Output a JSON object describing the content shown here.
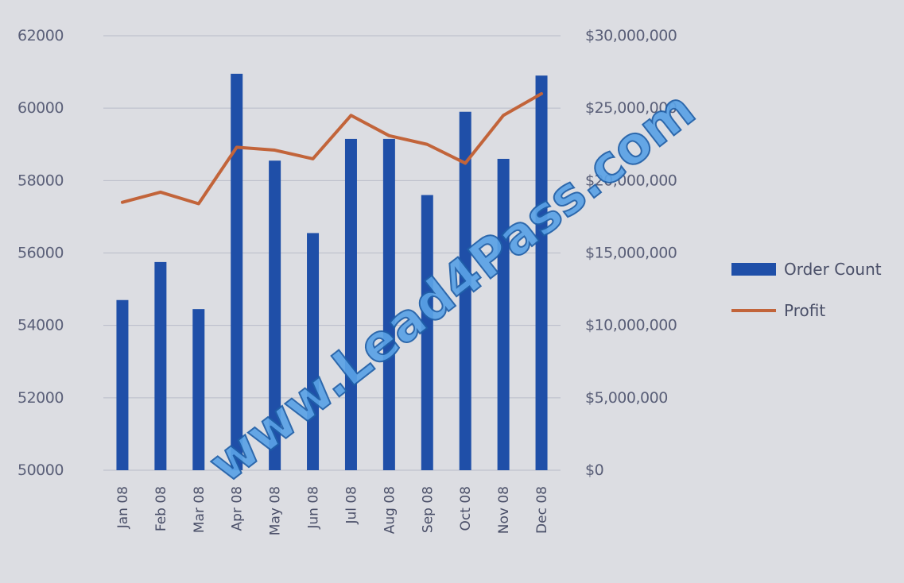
{
  "chart_data": {
    "type": "bar",
    "categories": [
      "Jan 08",
      "Feb 08",
      "Mar 08",
      "Apr 08",
      "May 08",
      "Jun 08",
      "Jul 08",
      "Aug 08",
      "Sep 08",
      "Oct 08",
      "Nov 08",
      "Dec 08"
    ],
    "series": [
      {
        "name": "Order Count",
        "type": "bar",
        "axis": "left",
        "values": [
          54700,
          55750,
          54450,
          60950,
          58550,
          56550,
          59150,
          59150,
          57600,
          59900,
          58600,
          60900
        ],
        "color": "#1f4fa8"
      },
      {
        "name": "Profit",
        "type": "line",
        "axis": "right",
        "values": [
          18500000,
          19200000,
          18400000,
          22300000,
          22100000,
          21500000,
          24500000,
          23100000,
          22500000,
          21200000,
          24500000,
          26000000
        ],
        "color": "#c2643a"
      }
    ],
    "y_left": {
      "ticks": [
        "62000",
        "60000",
        "58000",
        "56000",
        "54000",
        "52000",
        "50000"
      ],
      "min": 50000,
      "max": 62000
    },
    "y_right": {
      "ticks": [
        "$30,000,000",
        "$25,000,000",
        "$20,000,000",
        "$15,000,000",
        "$10,000,000",
        "$5,000,000",
        "$0"
      ],
      "min": 0,
      "max": 30000000
    },
    "xlabel": "",
    "ylabel": "",
    "grid": true,
    "legend": "right"
  },
  "watermark": {
    "text": "www.Lead4Pass.com"
  }
}
